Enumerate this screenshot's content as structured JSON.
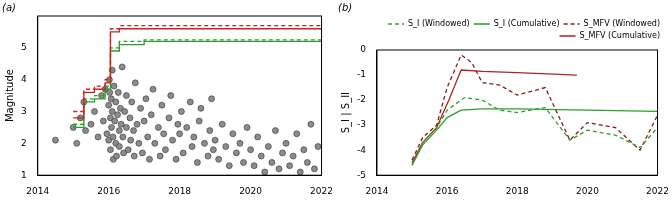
{
  "chart_data": [
    {
      "type": "scatter",
      "title": "(a)",
      "y_label": "Magnitude",
      "xlim": [
        2014,
        2022
      ],
      "xticks": [
        2014,
        2016,
        2018,
        2020,
        2022
      ],
      "ylim": [
        1,
        6
      ],
      "yticks": [
        1,
        2,
        3,
        4,
        5
      ],
      "grid": false,
      "series": [
        {
          "type": "scatter",
          "marker": "circle",
          "color": "#8c8c8c",
          "x": [
            2014.5,
            2015.0,
            2015.1,
            2015.2,
            2015.3,
            2015.35,
            2015.5,
            2015.6,
            2015.7,
            2015.8,
            2015.85,
            2015.9,
            2015.95,
            2016.0,
            2016.0,
            2016.02,
            2016.03,
            2016.05,
            2016.05,
            2016.07,
            2016.08,
            2016.1,
            2016.1,
            2016.12,
            2016.13,
            2016.15,
            2016.17,
            2016.2,
            2016.2,
            2016.22,
            2016.25,
            2016.27,
            2016.3,
            2016.3,
            2016.33,
            2016.35,
            2016.38,
            2016.4,
            2016.42,
            2016.45,
            2016.5,
            2016.5,
            2016.55,
            2016.6,
            2016.62,
            2016.65,
            2016.7,
            2016.72,
            2016.75,
            2016.8,
            2016.85,
            2016.9,
            2016.95,
            2017.0,
            2017.05,
            2017.1,
            2017.15,
            2017.2,
            2017.25,
            2017.3,
            2017.4,
            2017.45,
            2017.5,
            2017.55,
            2017.6,
            2017.7,
            2017.75,
            2017.8,
            2017.9,
            2017.95,
            2018.0,
            2018.05,
            2018.1,
            2018.2,
            2018.3,
            2018.35,
            2018.4,
            2018.5,
            2018.55,
            2018.6,
            2018.7,
            2018.8,
            2018.85,
            2018.9,
            2018.95,
            2019.0,
            2019.1,
            2019.2,
            2019.3,
            2019.4,
            2019.5,
            2019.6,
            2019.7,
            2019.8,
            2019.9,
            2020.0,
            2020.1,
            2020.2,
            2020.3,
            2020.4,
            2020.5,
            2020.6,
            2020.7,
            2020.8,
            2020.9,
            2021.0,
            2021.1,
            2021.2,
            2021.3,
            2021.4,
            2021.5,
            2021.6,
            2021.7,
            2021.8,
            2021.9
          ],
          "values": [
            2.1,
            2.5,
            2.0,
            2.8,
            3.3,
            2.4,
            2.6,
            3.0,
            2.2,
            3.5,
            2.7,
            3.7,
            2.3,
            3.2,
            2.1,
            4.0,
            3.6,
            2.8,
            1.8,
            3.4,
            2.5,
            4.3,
            3.0,
            2.2,
            1.5,
            3.8,
            2.7,
            3.3,
            2.0,
            1.6,
            2.9,
            3.6,
            2.4,
            1.9,
            3.1,
            2.6,
            4.4,
            2.2,
            1.7,
            3.0,
            2.5,
            3.5,
            1.8,
            2.8,
            2.1,
            3.3,
            2.4,
            1.6,
            3.9,
            2.6,
            2.0,
            3.1,
            1.7,
            2.7,
            3.4,
            2.2,
            1.5,
            2.9,
            3.7,
            2.0,
            2.5,
            1.6,
            3.2,
            2.3,
            1.8,
            2.8,
            3.5,
            2.1,
            1.5,
            2.6,
            2.3,
            3.0,
            1.7,
            2.5,
            3.3,
            1.9,
            2.2,
            1.4,
            2.7,
            3.1,
            2.0,
            1.6,
            2.4,
            3.4,
            1.8,
            2.1,
            1.5,
            2.6,
            1.9,
            1.3,
            2.3,
            1.7,
            2.0,
            1.4,
            2.5,
            1.8,
            1.3,
            2.2,
            1.6,
            1.1,
            1.9,
            1.4,
            2.4,
            1.2,
            1.7,
            2.0,
            1.3,
            1.6,
            2.3,
            1.1,
            1.8,
            1.4,
            2.6,
            1.2,
            1.9
          ]
        },
        {
          "type": "step",
          "color": "#cc2222",
          "line_style": "solid",
          "x": [
            2015.0,
            2015.3,
            2015.6,
            2015.9,
            2016.05,
            2016.3,
            2022
          ],
          "values": [
            2.8,
            3.6,
            3.7,
            3.9,
            5.5,
            5.6,
            5.6
          ]
        },
        {
          "type": "step",
          "color": "#cc2222",
          "line_style": "dashed",
          "x": [
            2015.0,
            2015.3,
            2015.6,
            2015.9,
            2016.05,
            2016.3,
            2022
          ],
          "values": [
            3.0,
            3.7,
            3.8,
            4.0,
            5.6,
            5.7,
            5.7
          ]
        },
        {
          "type": "step",
          "color": "#2e9e2e",
          "line_style": "solid",
          "x": [
            2015.0,
            2015.3,
            2015.6,
            2015.9,
            2016.05,
            2016.3,
            2017.0,
            2022
          ],
          "values": [
            2.5,
            3.3,
            3.4,
            3.7,
            4.9,
            5.1,
            5.2,
            5.2
          ]
        },
        {
          "type": "step",
          "color": "#2e9e2e",
          "line_style": "dashed",
          "x": [
            2015.0,
            2015.3,
            2015.6,
            2015.9,
            2016.05,
            2016.3,
            2017.0,
            2022
          ],
          "values": [
            2.6,
            3.4,
            3.5,
            3.8,
            5.0,
            5.2,
            5.25,
            5.25
          ]
        }
      ]
    },
    {
      "type": "line",
      "title": "(b)",
      "y_label": "S_I | S_II",
      "xlim": [
        2014,
        2022
      ],
      "xticks": [
        2014,
        2016,
        2018,
        2020,
        2022
      ],
      "ylim": [
        -5,
        0
      ],
      "yticks": [
        -5,
        -4,
        -3,
        -2,
        -1,
        0
      ],
      "grid": false,
      "legend": "upper right",
      "series": [
        {
          "name": "S_I (Windowed)",
          "type": "line",
          "color": "#2e9e2e",
          "line_style": "dashed",
          "x": [
            2015.0,
            2015.3,
            2015.7,
            2016.0,
            2016.5,
            2017.0,
            2017.5,
            2018.0,
            2018.8,
            2019.5,
            2020.0,
            2020.8,
            2021.5,
            2022.0
          ],
          "values": [
            -4.6,
            -3.7,
            -3.1,
            -2.4,
            -1.9,
            -2.0,
            -2.4,
            -2.5,
            -2.3,
            -3.6,
            -3.2,
            -3.4,
            -3.9,
            -3.1
          ]
        },
        {
          "name": "S_I (Cumulative)",
          "type": "line",
          "color": "#2e9e2e",
          "line_style": "solid",
          "x": [
            2015.0,
            2015.3,
            2015.7,
            2016.0,
            2016.4,
            2017.0,
            2018.0,
            2020.0,
            2022.0
          ],
          "values": [
            -4.6,
            -3.8,
            -3.2,
            -2.7,
            -2.4,
            -2.35,
            -2.35,
            -2.4,
            -2.45
          ]
        },
        {
          "name": "S_MFV (Windowed)",
          "type": "line",
          "color": "#8b1a1a",
          "line_style": "dashed",
          "x": [
            2015.0,
            2015.3,
            2015.7,
            2016.0,
            2016.4,
            2016.7,
            2017.0,
            2017.5,
            2018.0,
            2018.8,
            2019.5,
            2020.0,
            2020.8,
            2021.5,
            2022.0
          ],
          "values": [
            -4.4,
            -3.5,
            -3.0,
            -1.5,
            -0.2,
            -0.5,
            -1.3,
            -1.4,
            -1.8,
            -1.5,
            -3.6,
            -2.9,
            -3.1,
            -4.0,
            -2.6
          ]
        },
        {
          "name": "S_MFV (Cumulative)",
          "type": "line",
          "color": "#b22222",
          "line_style": "solid",
          "x": [
            2015.0,
            2015.3,
            2015.7,
            2016.05,
            2016.4,
            2017.0,
            2018.0,
            2019.7
          ],
          "values": [
            -4.5,
            -3.7,
            -3.1,
            -2.0,
            -0.8,
            -0.85,
            -0.9,
            -1.0
          ]
        }
      ]
    }
  ]
}
